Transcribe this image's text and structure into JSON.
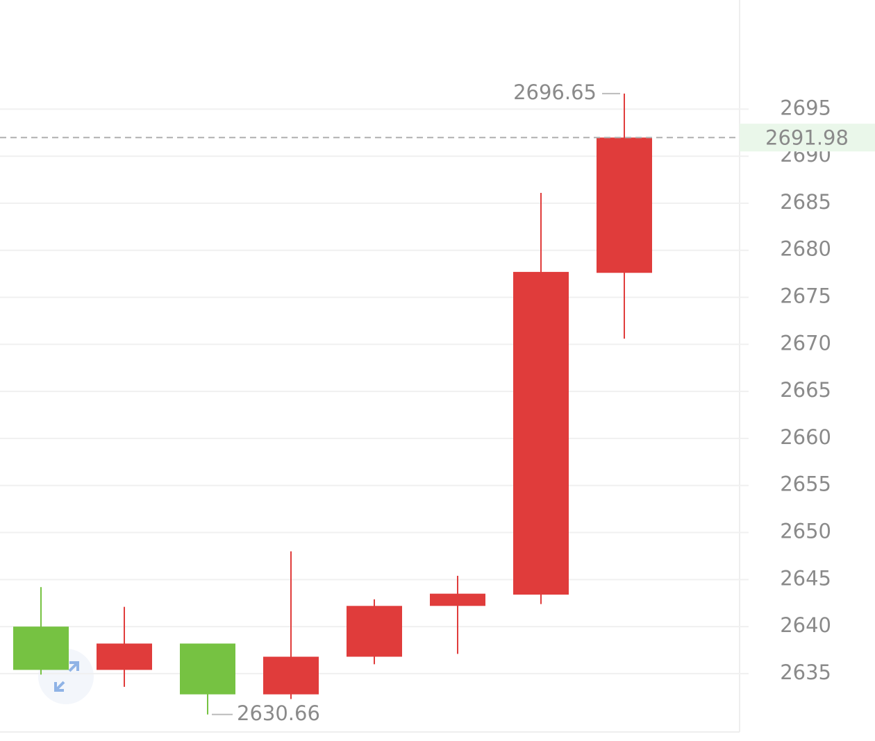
{
  "chart_data": {
    "type": "candlestick",
    "categories": [
      null,
      null,
      null,
      null,
      null,
      null,
      null,
      null
    ],
    "open": [
      2640.0,
      2635.4,
      2638.2,
      2632.8,
      2636.8,
      2642.2,
      2643.4,
      2677.6
    ],
    "high": [
      2644.2,
      2642.1,
      2638.2,
      2648.0,
      2642.9,
      2645.4,
      2686.1,
      2696.65
    ],
    "low": [
      2634.9,
      2633.6,
      2630.66,
      2632.3,
      2636.0,
      2637.1,
      2642.4,
      2670.6
    ],
    "close": [
      2635.4,
      2638.2,
      2632.8,
      2636.8,
      2642.2,
      2643.5,
      2677.7,
      2691.98
    ],
    "up_color": "#e03c3b",
    "down_color": "#76c242",
    "ylim": [
      2628.8,
      2706.6
    ],
    "yticks": [
      2635,
      2640,
      2645,
      2650,
      2655,
      2660,
      2665,
      2670,
      2675,
      2680,
      2685,
      2690,
      2695
    ],
    "grid": true
  }
}
